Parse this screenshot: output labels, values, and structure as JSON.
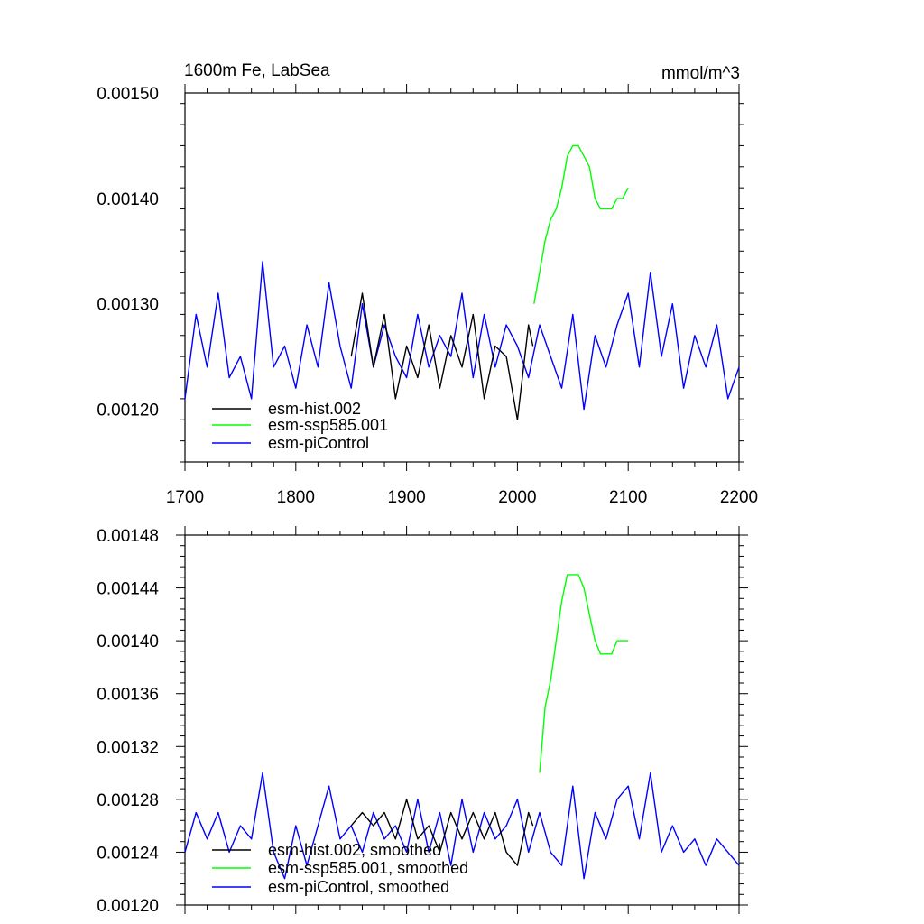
{
  "figure": {
    "title_left": "1600m Fe, LabSea",
    "title_right": "mmol/m^3"
  },
  "chart_data": [
    {
      "type": "line",
      "title": "1600m Fe, LabSea",
      "units": "mmol/m^3",
      "xlim": [
        1700,
        2200
      ],
      "ylim": [
        0.00115,
        0.0015
      ],
      "xticks": [
        1700,
        1800,
        1900,
        2000,
        2100,
        2200
      ],
      "xtick_labels": [
        "1700",
        "1800",
        "1900",
        "2000",
        "2100",
        "2200"
      ],
      "yticks": [
        0.0012,
        0.0013,
        0.0014,
        0.0015
      ],
      "ytick_labels": [
        "0.00120",
        "0.00130",
        "0.00140",
        "0.00150"
      ],
      "legend_position": "lower-left",
      "series": [
        {
          "name": "esm-hist.002",
          "color": "#000000",
          "x": [
            1850,
            1860,
            1870,
            1880,
            1890,
            1900,
            1910,
            1920,
            1930,
            1940,
            1950,
            1960,
            1970,
            1980,
            1990,
            2000,
            2010,
            2014
          ],
          "y": [
            0.00125,
            0.00131,
            0.00124,
            0.00129,
            0.00121,
            0.00126,
            0.00123,
            0.00128,
            0.00122,
            0.00127,
            0.00124,
            0.00129,
            0.00121,
            0.00126,
            0.00125,
            0.00119,
            0.00128,
            0.00126
          ]
        },
        {
          "name": "esm-ssp585.001",
          "color": "#00ff00",
          "x": [
            2015,
            2020,
            2025,
            2030,
            2035,
            2040,
            2045,
            2050,
            2055,
            2060,
            2065,
            2070,
            2075,
            2080,
            2085,
            2090,
            2095,
            2100
          ],
          "y": [
            0.0013,
            0.00133,
            0.00136,
            0.00138,
            0.00139,
            0.00141,
            0.00144,
            0.00145,
            0.00145,
            0.00144,
            0.00143,
            0.0014,
            0.00139,
            0.00139,
            0.00139,
            0.0014,
            0.0014,
            0.00141
          ]
        },
        {
          "name": "esm-piControl",
          "color": "#0000ff",
          "x": [
            1700,
            1710,
            1720,
            1730,
            1740,
            1750,
            1760,
            1770,
            1780,
            1790,
            1800,
            1810,
            1820,
            1830,
            1840,
            1850,
            1860,
            1870,
            1880,
            1890,
            1900,
            1910,
            1920,
            1930,
            1940,
            1950,
            1960,
            1970,
            1980,
            1990,
            2000,
            2010,
            2020,
            2030,
            2040,
            2050,
            2060,
            2070,
            2080,
            2090,
            2100,
            2110,
            2120,
            2130,
            2140,
            2150,
            2160,
            2170,
            2180,
            2190,
            2200
          ],
          "y": [
            0.00121,
            0.00129,
            0.00124,
            0.00131,
            0.00123,
            0.00125,
            0.00121,
            0.00134,
            0.00124,
            0.00126,
            0.00122,
            0.00128,
            0.00124,
            0.00132,
            0.00126,
            0.00122,
            0.0013,
            0.00124,
            0.00128,
            0.00125,
            0.00123,
            0.00129,
            0.00124,
            0.00127,
            0.00125,
            0.00131,
            0.00123,
            0.00129,
            0.00124,
            0.00128,
            0.00126,
            0.00123,
            0.00128,
            0.00125,
            0.00122,
            0.00129,
            0.0012,
            0.00127,
            0.00124,
            0.00128,
            0.00131,
            0.00124,
            0.00133,
            0.00125,
            0.0013,
            0.00122,
            0.00127,
            0.00124,
            0.00128,
            0.00121,
            0.00124
          ]
        }
      ]
    },
    {
      "type": "line",
      "xlim": [
        1700,
        2200
      ],
      "ylim": [
        0.0012,
        0.00148
      ],
      "xticks": [
        1700,
        1800,
        1900,
        2000,
        2100,
        2200
      ],
      "yticks": [
        0.0012,
        0.00124,
        0.00128,
        0.00132,
        0.00136,
        0.0014,
        0.00144,
        0.00148
      ],
      "ytick_labels": [
        "0.00120",
        "0.00124",
        "0.00128",
        "0.00132",
        "0.00136",
        "0.00140",
        "0.00144",
        "0.00148"
      ],
      "legend_position": "lower-left",
      "series": [
        {
          "name": "esm-hist.002, smoothed",
          "color": "#000000",
          "x": [
            1850,
            1860,
            1870,
            1880,
            1890,
            1900,
            1910,
            1920,
            1930,
            1940,
            1950,
            1960,
            1970,
            1980,
            1990,
            2000,
            2010,
            2014
          ],
          "y": [
            0.00126,
            0.00127,
            0.00126,
            0.00127,
            0.00125,
            0.00128,
            0.00125,
            0.00126,
            0.00124,
            0.00127,
            0.00125,
            0.00127,
            0.00125,
            0.00127,
            0.00124,
            0.00123,
            0.00127,
            0.00126
          ]
        },
        {
          "name": "esm-ssp585.001, smoothed",
          "color": "#00ff00",
          "x": [
            2020,
            2025,
            2030,
            2035,
            2040,
            2045,
            2050,
            2055,
            2060,
            2065,
            2070,
            2075,
            2080,
            2085,
            2090,
            2095,
            2100
          ],
          "y": [
            0.0013,
            0.00135,
            0.00137,
            0.0014,
            0.00143,
            0.00145,
            0.00145,
            0.00145,
            0.00144,
            0.00142,
            0.0014,
            0.00139,
            0.00139,
            0.00139,
            0.0014,
            0.0014,
            0.0014
          ]
        },
        {
          "name": "esm-piControl, smoothed",
          "color": "#0000ff",
          "x": [
            1700,
            1710,
            1720,
            1730,
            1740,
            1750,
            1760,
            1770,
            1780,
            1790,
            1800,
            1810,
            1820,
            1830,
            1840,
            1850,
            1860,
            1870,
            1880,
            1890,
            1900,
            1910,
            1920,
            1930,
            1940,
            1950,
            1960,
            1970,
            1980,
            1990,
            2000,
            2010,
            2020,
            2030,
            2040,
            2050,
            2060,
            2070,
            2080,
            2090,
            2100,
            2110,
            2120,
            2130,
            2140,
            2150,
            2160,
            2170,
            2180,
            2190,
            2200
          ],
          "y": [
            0.00124,
            0.00127,
            0.00125,
            0.00127,
            0.00124,
            0.00126,
            0.00125,
            0.0013,
            0.00124,
            0.00122,
            0.00126,
            0.00123,
            0.00126,
            0.00129,
            0.00125,
            0.00126,
            0.00124,
            0.00127,
            0.00125,
            0.00126,
            0.00124,
            0.00128,
            0.00124,
            0.00127,
            0.00123,
            0.00128,
            0.00124,
            0.00127,
            0.00125,
            0.00126,
            0.00128,
            0.00124,
            0.00127,
            0.00124,
            0.00123,
            0.00129,
            0.00122,
            0.00127,
            0.00125,
            0.00128,
            0.00129,
            0.00125,
            0.0013,
            0.00124,
            0.00126,
            0.00124,
            0.00125,
            0.00123,
            0.00125,
            0.00124,
            0.00123
          ]
        }
      ]
    }
  ]
}
